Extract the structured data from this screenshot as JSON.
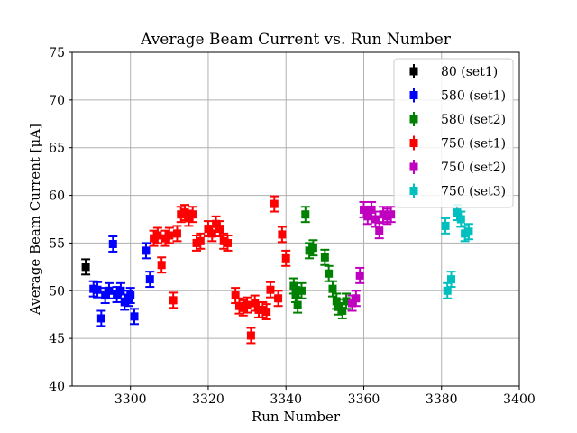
{
  "chart_data": {
    "type": "scatter",
    "title": "Average Beam Current vs. Run Number",
    "xlabel": "Run Number",
    "ylabel": "Average Beam Current [μA]",
    "xlim": [
      3285,
      3400
    ],
    "ylim": [
      40,
      75
    ],
    "xticks": [
      3300,
      3320,
      3340,
      3360,
      3380,
      3400
    ],
    "yticks": [
      40,
      45,
      50,
      55,
      60,
      65,
      70,
      75
    ],
    "grid": true,
    "legend_position": "top-right",
    "error_bar": 0.8,
    "series": [
      {
        "name": "80 (set1)",
        "color": "#000000",
        "points": [
          [
            3288.5,
            52.5
          ]
        ]
      },
      {
        "name": "580 (set1)",
        "color": "#0000ff",
        "points": [
          [
            3290.5,
            50.2
          ],
          [
            3291.5,
            50.1
          ],
          [
            3292.5,
            47.1
          ],
          [
            3293.5,
            49.5
          ],
          [
            3294.5,
            50.0
          ],
          [
            3295.5,
            54.9
          ],
          [
            3296.5,
            49.6
          ],
          [
            3297.5,
            50.0
          ],
          [
            3298.5,
            48.8
          ],
          [
            3299.5,
            49.2
          ],
          [
            3300.0,
            49.5
          ],
          [
            3301.0,
            47.3
          ],
          [
            3304.0,
            54.2
          ],
          [
            3305.0,
            51.2
          ]
        ]
      },
      {
        "name": "580 (set2)",
        "color": "#008000",
        "points": [
          [
            3342.0,
            50.5
          ],
          [
            3342.5,
            49.6
          ],
          [
            3343.0,
            48.5
          ],
          [
            3344.0,
            50.0
          ],
          [
            3345.0,
            58.0
          ],
          [
            3346.0,
            54.2
          ],
          [
            3347.0,
            54.5
          ],
          [
            3350.0,
            53.5
          ],
          [
            3351.0,
            51.8
          ],
          [
            3352.0,
            50.2
          ],
          [
            3353.0,
            48.9
          ],
          [
            3353.5,
            48.3
          ],
          [
            3354.5,
            47.9
          ],
          [
            3355.5,
            48.9
          ]
        ]
      },
      {
        "name": "750 (set1)",
        "color": "#ff0000",
        "points": [
          [
            3306.0,
            55.5
          ],
          [
            3307.0,
            55.8
          ],
          [
            3308.0,
            52.7
          ],
          [
            3309.0,
            55.5
          ],
          [
            3310.0,
            55.8
          ],
          [
            3311.0,
            49.0
          ],
          [
            3312.0,
            56.0
          ],
          [
            3313.0,
            58.0
          ],
          [
            3314.0,
            58.2
          ],
          [
            3315.0,
            57.6
          ],
          [
            3316.0,
            58.0
          ],
          [
            3317.0,
            55.0
          ],
          [
            3318.0,
            55.2
          ],
          [
            3320.0,
            56.5
          ],
          [
            3321.0,
            56.0
          ],
          [
            3322.0,
            57.0
          ],
          [
            3323.0,
            56.5
          ],
          [
            3324.0,
            55.2
          ],
          [
            3325.0,
            55.0
          ],
          [
            3327.0,
            49.5
          ],
          [
            3328.0,
            48.4
          ],
          [
            3329.0,
            48.2
          ],
          [
            3330.0,
            48.5
          ],
          [
            3331.0,
            45.3
          ],
          [
            3332.0,
            48.7
          ],
          [
            3333.0,
            48.0
          ],
          [
            3334.0,
            48.0
          ],
          [
            3335.0,
            47.8
          ],
          [
            3336.0,
            50.1
          ],
          [
            3337.0,
            59.1
          ],
          [
            3338.0,
            49.2
          ],
          [
            3339.0,
            55.9
          ],
          [
            3340.0,
            53.4
          ]
        ]
      },
      {
        "name": "750 (set2)",
        "color": "#bf00bf",
        "points": [
          [
            3358.0,
            49.2
          ],
          [
            3359.0,
            51.6
          ],
          [
            3360.0,
            58.5
          ],
          [
            3361.0,
            57.8
          ],
          [
            3362.0,
            58.5
          ],
          [
            3363.0,
            57.5
          ],
          [
            3364.0,
            56.3
          ],
          [
            3365.0,
            58.0
          ],
          [
            3366.0,
            57.8
          ],
          [
            3367.0,
            58.0
          ],
          [
            3357.0,
            48.7
          ]
        ]
      },
      {
        "name": "750 (set3)",
        "color": "#00bfbf",
        "points": [
          [
            3381.0,
            56.8
          ],
          [
            3381.5,
            50.0
          ],
          [
            3382.5,
            51.2
          ],
          [
            3384.0,
            58.2
          ],
          [
            3385.0,
            57.5
          ],
          [
            3386.0,
            56.0
          ],
          [
            3387.0,
            56.2
          ]
        ]
      }
    ]
  }
}
